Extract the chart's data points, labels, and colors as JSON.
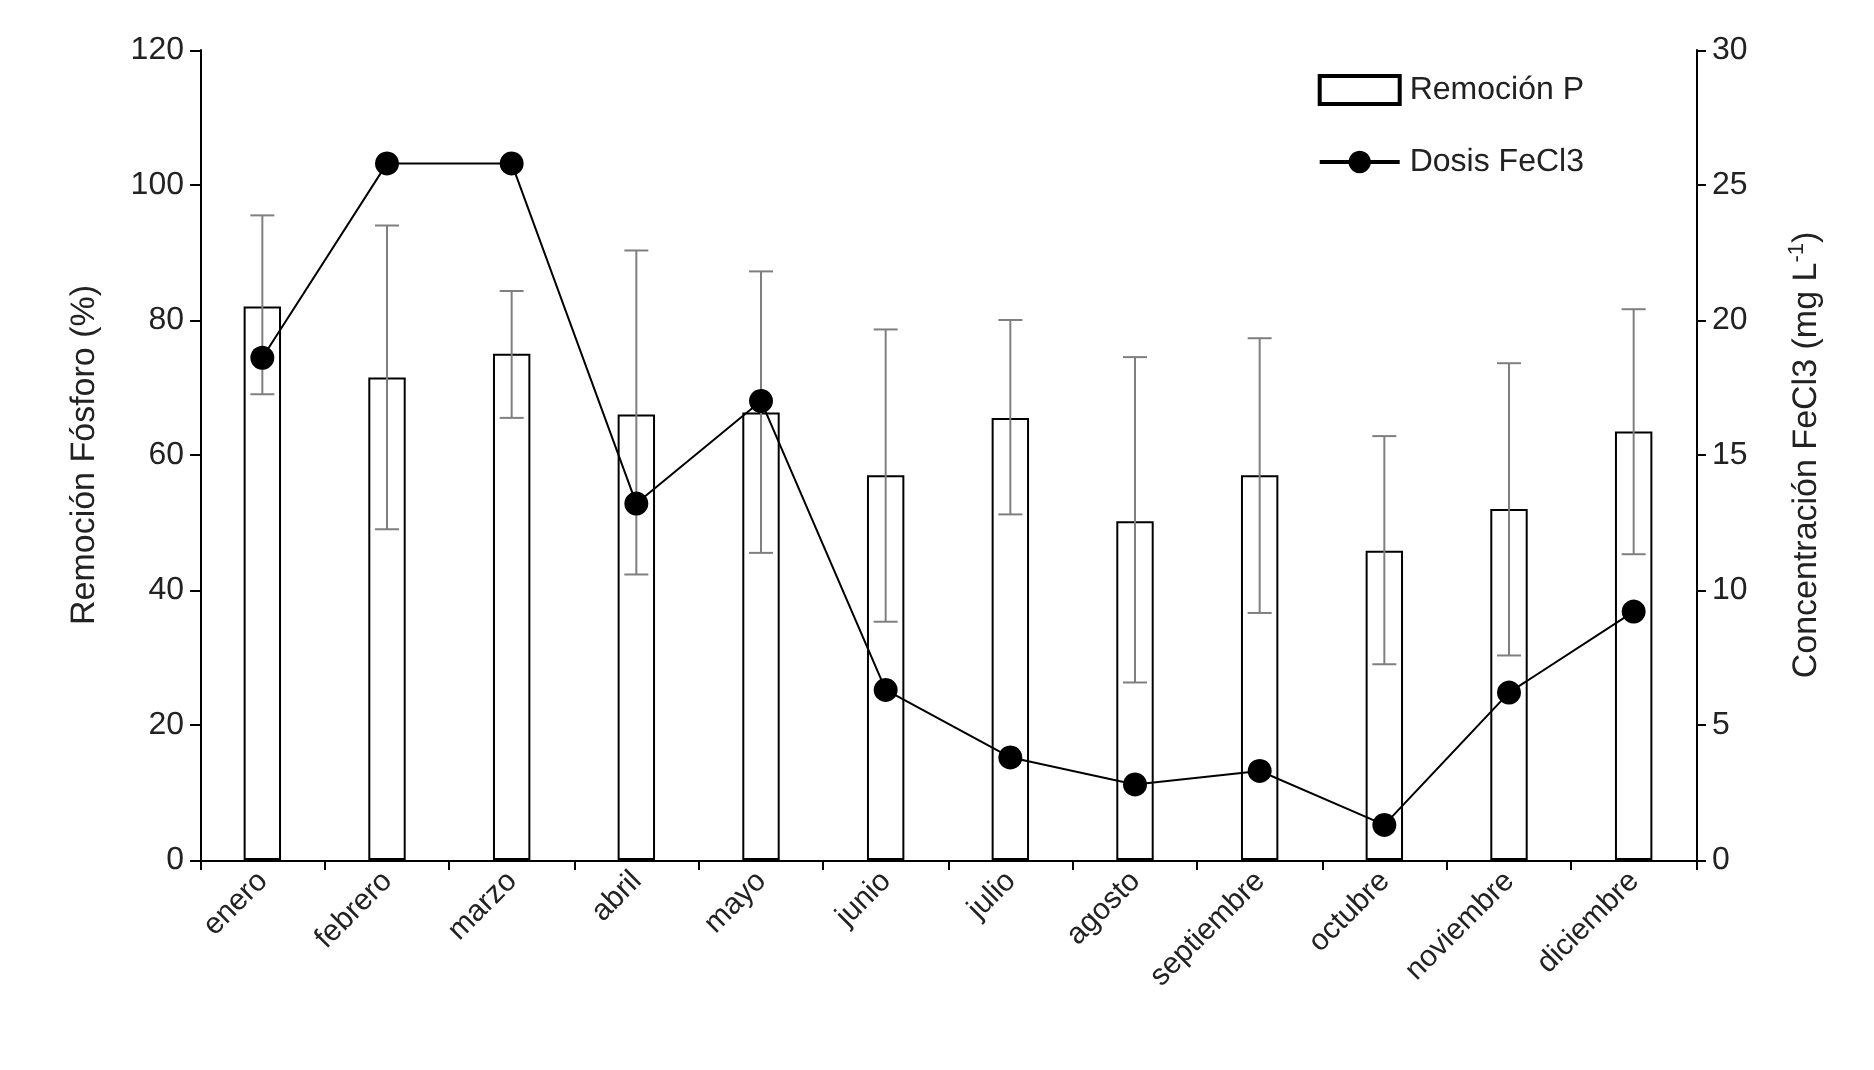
{
  "chart_data": {
    "type": "bar",
    "categories": [
      "enero",
      "febrero",
      "marzo",
      "abril",
      "mayo",
      "junio",
      "julio",
      "agosto",
      "septiembre",
      "octubre",
      "noviembre",
      "diciembre"
    ],
    "ylabel": "Remoción Fósforo (%)",
    "y2label": "Concentración FeCl3 (mg L$^{-1}$)",
    "ylim": [
      0,
      120
    ],
    "yticks": [
      0,
      20,
      40,
      60,
      80,
      100,
      120
    ],
    "y2lim": [
      0,
      30
    ],
    "y2ticks": [
      0,
      5,
      10,
      15,
      20,
      25,
      30
    ],
    "series": [
      {
        "name": "Remoción P",
        "color": "#ffffff",
        "values": [
          82,
          71.5,
          75,
          66,
          66.3,
          57,
          65.5,
          50.2,
          57,
          45.8,
          52,
          63.5
        ],
        "errors": [
          [
            69,
            95.5
          ],
          [
            49,
            94
          ],
          [
            65.5,
            84.3
          ],
          [
            42.3,
            90.3
          ],
          [
            45.5,
            87.2
          ],
          [
            35.3,
            78.6
          ],
          [
            51.2,
            80
          ],
          [
            26.3,
            74.5
          ],
          [
            36.6,
            77.3
          ],
          [
            29,
            62.8
          ],
          [
            30.3,
            73.6
          ],
          [
            45.3,
            81.6
          ]
        ]
      },
      {
        "name": "Dosis FeCl3",
        "type": "line",
        "axis": "y2",
        "color": "#000000",
        "values": [
          18.6,
          25.8,
          25.8,
          13.2,
          17.0,
          6.3,
          3.8,
          2.8,
          3.3,
          1.3,
          6.2,
          9.2
        ]
      }
    ],
    "marker": "circle",
    "line_style": "solid",
    "grid": false,
    "legend": "top right"
  }
}
